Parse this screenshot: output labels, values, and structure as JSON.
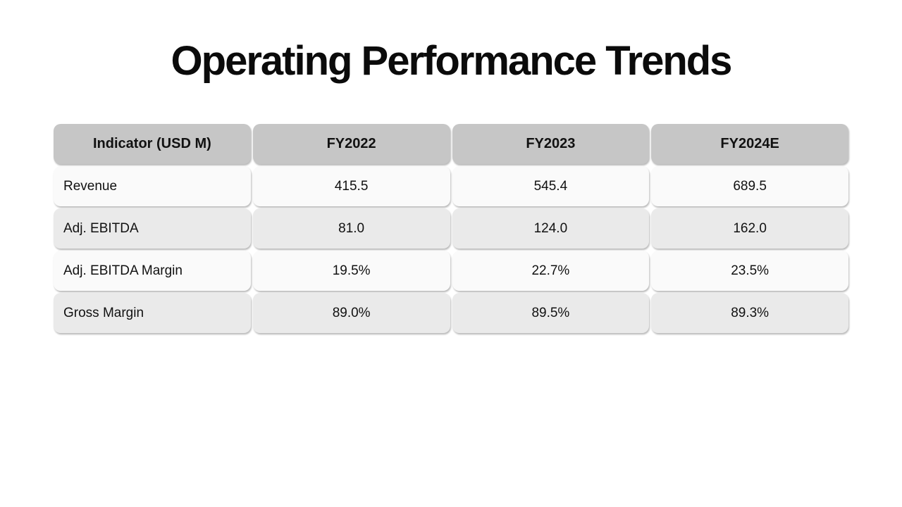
{
  "title": "Operating Performance Trends",
  "chart_data": {
    "type": "table",
    "title": "Operating Performance Trends",
    "columns": [
      "Indicator (USD M)",
      "FY2022",
      "FY2023",
      "FY2024E"
    ],
    "rows": [
      [
        "Revenue",
        "415.5",
        "545.4",
        "689.5"
      ],
      [
        "Adj. EBITDA",
        "81.0",
        "124.0",
        "162.0"
      ],
      [
        "Adj. EBITDA Margin",
        "19.5%",
        "22.7%",
        "23.5%"
      ],
      [
        "Gross Margin",
        "89.0%",
        "89.5%",
        "89.3%"
      ]
    ]
  },
  "colors": {
    "header_bg": "#c6c6c6",
    "row_light_bg": "#fafafa",
    "row_dark_bg": "#eaeaea",
    "text": "#111111",
    "page_bg": "#ffffff"
  }
}
